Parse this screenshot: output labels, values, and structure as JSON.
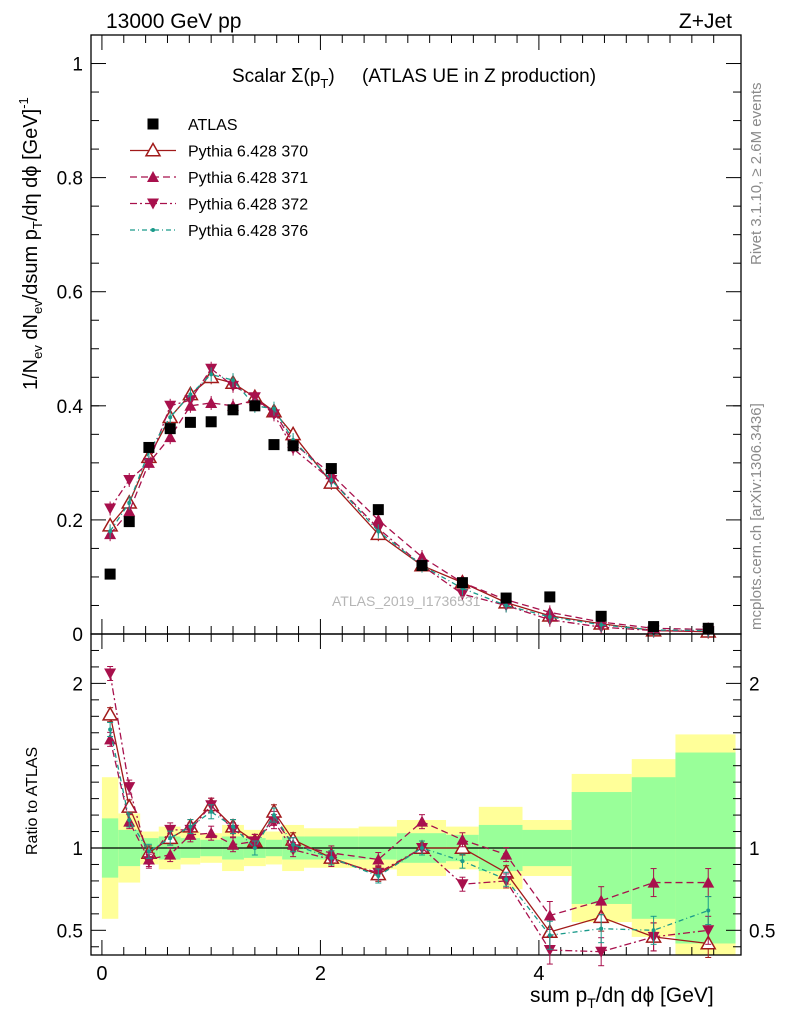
{
  "header": {
    "left": "13000 GeV pp",
    "right": "Z+Jet"
  },
  "plot_title": "Scalar Σ(p_T) (ATLAS UE in Z production)",
  "side_labels": {
    "rivet": "Rivet 3.1.10, ≥ 2.6M events",
    "mcplots": "mcplots.cern.ch [arXiv:1306.3436]"
  },
  "watermark": "ATLAS_2019_I1736531",
  "colors": {
    "data": "#000000",
    "p370": "#a11a1a",
    "p371": "#a8104c",
    "p372": "#a8104c",
    "p376": "#1a9a8a",
    "band_yellow": "#ffff99",
    "band_green": "#99ff99"
  },
  "chart_data": [
    {
      "type": "scatter",
      "panel": "main",
      "ylabel": "1/N_ev dN_ev/dsum p_T/dη dϕ [GeV]^-1",
      "xlim": [
        -0.1,
        5.85
      ],
      "ylim": [
        0,
        1.05
      ],
      "yticks": [
        "0",
        "0.2",
        "0.4",
        "0.6",
        "0.8",
        "1"
      ],
      "legend_position": "top-left",
      "x": [
        0.075,
        0.25,
        0.43,
        0.625,
        0.81,
        1.0,
        1.2,
        1.4,
        1.575,
        1.75,
        2.1,
        2.53,
        2.93,
        3.3,
        3.7,
        4.1,
        4.57,
        5.05,
        5.55
      ],
      "series": [
        {
          "name": "ATLAS",
          "key": "data",
          "marker": "square",
          "values": [
            0.105,
            0.197,
            0.327,
            0.36,
            0.371,
            0.372,
            0.393,
            0.4,
            0.332,
            0.33,
            0.29,
            0.218,
            0.12,
            0.09,
            0.063,
            0.065,
            0.031,
            0.013,
            0.01
          ]
        },
        {
          "name": "Pythia 6.428 370",
          "key": "p370",
          "marker": "triangle-up-open",
          "dash": "",
          "values": [
            0.19,
            0.23,
            0.31,
            0.38,
            0.42,
            0.45,
            0.44,
            0.415,
            0.39,
            0.35,
            0.265,
            0.175,
            0.12,
            0.09,
            0.055,
            0.032,
            0.018,
            0.006,
            0.004
          ]
        },
        {
          "name": "Pythia 6.428 371",
          "key": "p371",
          "marker": "triangle-up",
          "dash": "7,4",
          "values": [
            0.175,
            0.215,
            0.3,
            0.345,
            0.4,
            0.405,
            0.4,
            0.41,
            0.39,
            0.335,
            0.28,
            0.2,
            0.135,
            0.09,
            0.06,
            0.038,
            0.021,
            0.01,
            0.008
          ]
        },
        {
          "name": "Pythia 6.428 372",
          "key": "p372",
          "marker": "triangle-down",
          "dash": "7,3,2,3",
          "values": [
            0.22,
            0.27,
            0.3,
            0.4,
            0.41,
            0.465,
            0.435,
            0.415,
            0.385,
            0.325,
            0.27,
            0.185,
            0.12,
            0.07,
            0.05,
            0.025,
            0.012,
            0.006,
            0.005
          ]
        },
        {
          "name": "Pythia 6.428 376",
          "key": "p376",
          "marker": "dot",
          "dash": "5,3,1,3",
          "values": [
            0.18,
            0.23,
            0.32,
            0.38,
            0.42,
            0.455,
            0.445,
            0.4,
            0.395,
            0.34,
            0.27,
            0.18,
            0.12,
            0.08,
            0.05,
            0.03,
            0.016,
            0.007,
            0.006
          ]
        }
      ]
    },
    {
      "type": "line",
      "panel": "ratio",
      "ylabel": "Ratio to ATLAS",
      "xlabel": "sum p_T/dη dϕ [GeV]",
      "xlim": [
        -0.1,
        5.85
      ],
      "ylim": [
        0.35,
        2.3
      ],
      "yticks": [
        "0.5",
        "1",
        "2"
      ],
      "xticks": [
        "0",
        "2",
        "4"
      ],
      "reference": 1,
      "bins": [
        [
          0,
          0.15
        ],
        [
          0.15,
          0.35
        ],
        [
          0.35,
          0.52
        ],
        [
          0.52,
          0.72
        ],
        [
          0.72,
          0.9
        ],
        [
          0.9,
          1.1
        ],
        [
          1.1,
          1.3
        ],
        [
          1.3,
          1.5
        ],
        [
          1.5,
          1.65
        ],
        [
          1.65,
          1.85
        ],
        [
          1.85,
          2.35
        ],
        [
          2.35,
          2.7
        ],
        [
          2.7,
          3.15
        ],
        [
          3.15,
          3.45
        ],
        [
          3.45,
          3.85
        ],
        [
          3.85,
          4.3
        ],
        [
          4.3,
          4.85
        ],
        [
          4.85,
          5.25
        ],
        [
          5.25,
          5.8
        ]
      ],
      "band_yellow": [
        0.43,
        0.21,
        0.1,
        0.13,
        0.1,
        0.09,
        0.14,
        0.11,
        0.1,
        0.14,
        0.12,
        0.13,
        0.17,
        0.13,
        0.25,
        0.17,
        0.45,
        0.54,
        0.69
      ],
      "band_green": [
        0.18,
        0.11,
        0.06,
        0.07,
        0.06,
        0.05,
        0.07,
        0.06,
        0.05,
        0.07,
        0.07,
        0.07,
        0.09,
        0.08,
        0.14,
        0.11,
        0.34,
        0.43,
        0.58
      ],
      "series": [
        {
          "key": "p370",
          "values": [
            1.81,
            1.25,
            0.97,
            1.06,
            1.13,
            1.26,
            1.13,
            1.04,
            1.22,
            1.05,
            0.94,
            0.84,
            1.0,
            1.0,
            0.85,
            0.49,
            0.58,
            0.46,
            0.42
          ]
        },
        {
          "key": "p371",
          "values": [
            1.66,
            1.16,
            0.93,
            0.96,
            1.08,
            1.09,
            1.02,
            1.04,
            1.18,
            1.02,
            0.97,
            0.93,
            1.16,
            1.05,
            0.96,
            0.59,
            0.68,
            0.79,
            0.79
          ]
        },
        {
          "key": "p372",
          "values": [
            2.06,
            1.37,
            0.92,
            1.11,
            1.11,
            1.26,
            1.11,
            1.04,
            1.16,
            0.99,
            0.93,
            0.85,
            1.0,
            0.78,
            0.8,
            0.38,
            0.37,
            0.46,
            0.5
          ]
        },
        {
          "key": "p376",
          "values": [
            1.72,
            1.17,
            0.98,
            1.06,
            1.13,
            1.22,
            1.13,
            1.0,
            1.2,
            1.02,
            0.94,
            0.83,
            1.0,
            0.92,
            0.81,
            0.47,
            0.51,
            0.5,
            0.62
          ]
        }
      ]
    }
  ]
}
